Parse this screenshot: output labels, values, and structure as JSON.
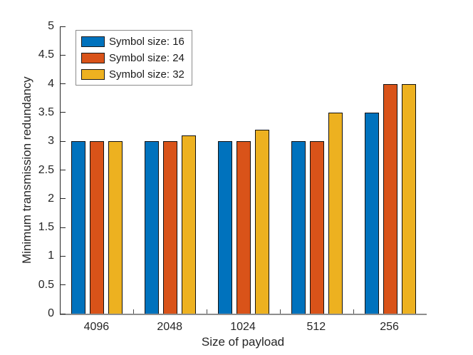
{
  "chart_data": {
    "type": "bar",
    "title": "",
    "xlabel": "Size of payload",
    "ylabel": "Minimum transmission redundancy",
    "categories": [
      "4096",
      "2048",
      "1024",
      "512",
      "256"
    ],
    "series": [
      {
        "name": "Symbol size: 16",
        "color": "#0072BD",
        "values": [
          3,
          3,
          3,
          3,
          3.5
        ]
      },
      {
        "name": "Symbol size: 24",
        "color": "#D95319",
        "values": [
          3,
          3,
          3,
          3,
          4
        ]
      },
      {
        "name": "Symbol size: 32",
        "color": "#EDB120",
        "values": [
          3,
          3.1,
          3.2,
          3.5,
          4
        ]
      }
    ],
    "ylim": [
      0,
      5
    ],
    "ytick_step": 0.5,
    "ytick_labels": [
      "0",
      "0.5",
      "1",
      "1.5",
      "2",
      "2.5",
      "3",
      "3.5",
      "4",
      "4.5",
      "5"
    ],
    "grid": false,
    "legend": {
      "position": "top-left",
      "entries": [
        "Symbol size: 16",
        "Symbol size: 24",
        "Symbol size: 32"
      ]
    },
    "colors": {
      "axis": "#262626",
      "baseline": "#8e8e8e",
      "bar_edge": "#111111",
      "legend_border": "#8c8c8c",
      "background": "#ffffff"
    }
  }
}
